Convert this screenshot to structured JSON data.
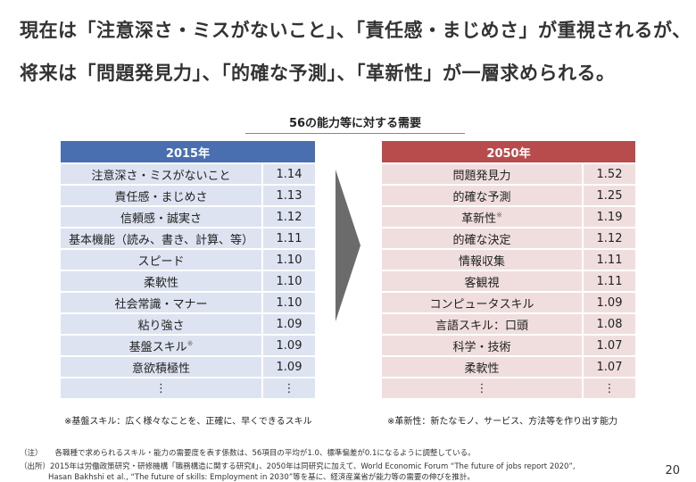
{
  "headline": {
    "line1": "現在は「注意深さ・ミスがないこと」、「責任感・まじめさ」が重視されるが、",
    "line2": "将来は「問題発見力」、「的確な予測」、「革新性」が一層求められる。"
  },
  "subtitle": "56の能力等に対する需要",
  "table2015": {
    "header": "2015年",
    "rows": [
      {
        "label": "注意深さ・ミスがないこと",
        "value": "1.14"
      },
      {
        "label": "責任感・まじめさ",
        "value": "1.13"
      },
      {
        "label": "信頼感・誠実さ",
        "value": "1.12"
      },
      {
        "label": "基本機能（読み、書き、計算、等）",
        "value": "1.11"
      },
      {
        "label": "スピード",
        "value": "1.10"
      },
      {
        "label": "柔軟性",
        "value": "1.10"
      },
      {
        "label": "社会常識・マナー",
        "value": "1.10"
      },
      {
        "label": "粘り強さ",
        "value": "1.09"
      },
      {
        "label": "基盤スキル",
        "value": "1.09",
        "mark": "※"
      },
      {
        "label": "意欲積極性",
        "value": "1.09"
      },
      {
        "label": "⋮",
        "value": "⋮"
      }
    ],
    "note": "※基盤スキル：広く様々なことを、正確に、早くできるスキル"
  },
  "table2050": {
    "header": "2050年",
    "rows": [
      {
        "label": "問題発見力",
        "value": "1.52"
      },
      {
        "label": "的確な予測",
        "value": "1.25"
      },
      {
        "label": "革新性",
        "value": "1.19",
        "mark": "※"
      },
      {
        "label": "的確な決定",
        "value": "1.12"
      },
      {
        "label": "情報収集",
        "value": "1.11"
      },
      {
        "label": "客観視",
        "value": "1.11"
      },
      {
        "label": "コンピュータスキル",
        "value": "1.09"
      },
      {
        "label": "言語スキル：口頭",
        "value": "1.08"
      },
      {
        "label": "科学・技術",
        "value": "1.07"
      },
      {
        "label": "柔軟性",
        "value": "1.07"
      },
      {
        "label": "⋮",
        "value": "⋮"
      }
    ],
    "note": "※革新性：新たなモノ、サービス、方法等を作り出す能力"
  },
  "footnotes": {
    "note_label": "（注）",
    "note_text": "各職種で求められるスキル・能力の需要度を表す係数は、56項目の平均が1.0、標準偏差が0.1になるように調整している。",
    "source_label": "（出所）",
    "source_text1": "2015年は労働政策研究・研修機構「職務構造に関する研究Ⅱ」、2050年は同研究に加えて、World Economic Forum “The future of jobs report 2020”,",
    "source_text2": "Hasan Bakhshi et al., “The future of skills: Employment in 2030”等を基に、経済産業省が能力等の需要の伸びを推計。"
  },
  "page_number": "20",
  "colors": {
    "header_2015": "#4a6fb0",
    "row_2015": "#dde3f0",
    "header_2050": "#b84c4c",
    "row_2050": "#f0dede",
    "arrow": "#6b6b6b"
  }
}
